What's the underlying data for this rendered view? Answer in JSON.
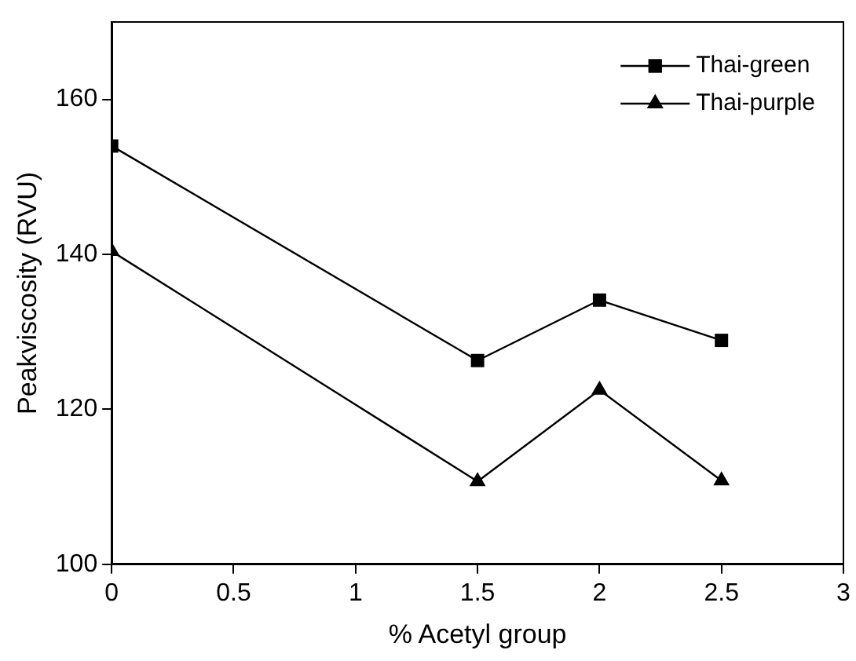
{
  "chart_data": {
    "type": "line",
    "xlabel": "% Acetyl group",
    "ylabel": "Peakviscosity (RVU)",
    "x": [
      0,
      1.5,
      2,
      2.5
    ],
    "series": [
      {
        "name": "Thai-green",
        "color": "#000000",
        "marker": "square",
        "values": [
          154,
          126.3,
          134.1,
          128.9
        ]
      },
      {
        "name": "Thai-purple",
        "color": "#000000",
        "marker": "triangle",
        "values": [
          140.4,
          110.7,
          122.5,
          110.8
        ]
      }
    ],
    "xlim": [
      0,
      3
    ],
    "xticks": [
      0,
      0.5,
      1,
      1.5,
      2,
      2.5,
      3
    ],
    "ylim": [
      100,
      170
    ],
    "yticks": [
      100,
      120,
      140,
      160
    ],
    "grid": false,
    "legend": "top right",
    "line_style": "solid"
  }
}
